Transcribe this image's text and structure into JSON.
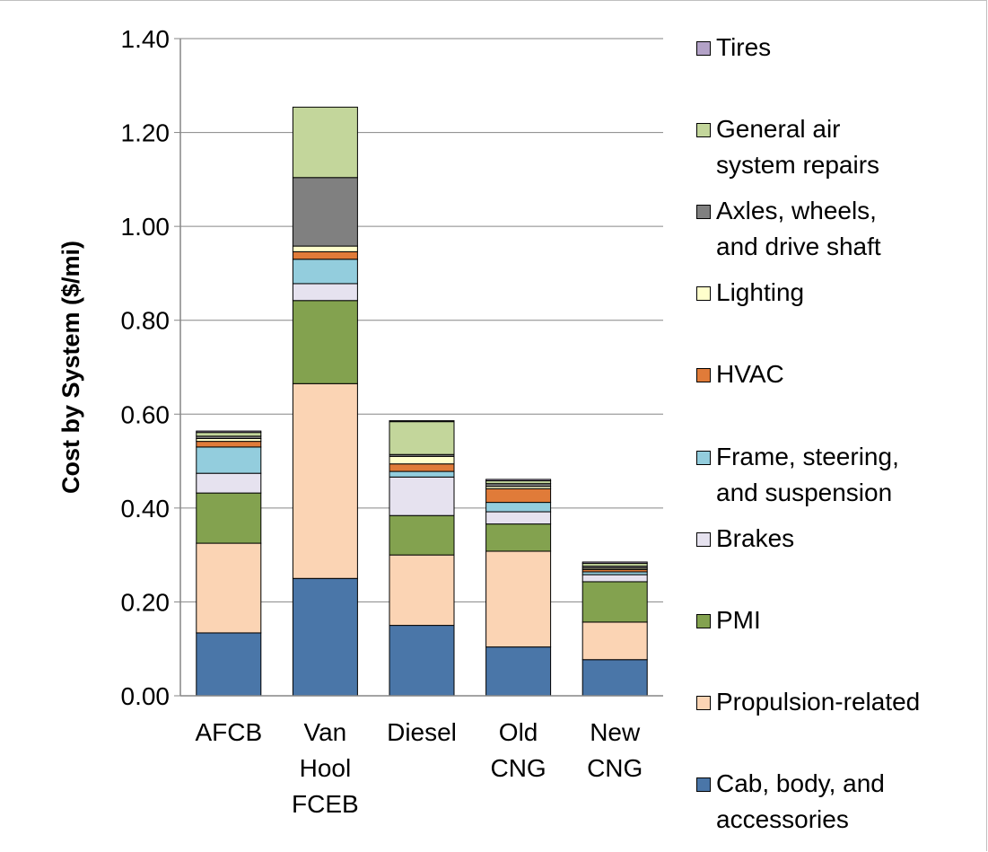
{
  "chart_data": {
    "type": "bar",
    "stacked": true,
    "y_label": "Cost by System ($/mi)",
    "categories": [
      "AFCB",
      "Van Hool FCEB",
      "Diesel",
      "Old CNG",
      "New CNG"
    ],
    "series": [
      {
        "name": "Cab, body, and accessories",
        "color": "#4a76a8",
        "values": [
          0.134,
          0.25,
          0.15,
          0.104,
          0.077
        ]
      },
      {
        "name": "Propulsion-related",
        "color": "#fbd4b4",
        "values": [
          0.191,
          0.415,
          0.15,
          0.204,
          0.08
        ]
      },
      {
        "name": "PMI",
        "color": "#83a24f",
        "values": [
          0.107,
          0.177,
          0.084,
          0.058,
          0.086
        ]
      },
      {
        "name": "Brakes",
        "color": "#e6e2ef",
        "values": [
          0.042,
          0.036,
          0.082,
          0.026,
          0.015
        ]
      },
      {
        "name": "Frame, steering, and suspension",
        "color": "#93cddd",
        "values": [
          0.056,
          0.052,
          0.012,
          0.02,
          0.006
        ]
      },
      {
        "name": "HVAC",
        "color": "#e07b39",
        "values": [
          0.012,
          0.016,
          0.016,
          0.029,
          0.005
        ]
      },
      {
        "name": "Lighting",
        "color": "#ffffcc",
        "values": [
          0.006,
          0.012,
          0.016,
          0.005,
          0.003
        ]
      },
      {
        "name": "Axles, wheels, and drive shaft",
        "color": "#808080",
        "values": [
          0.005,
          0.146,
          0.004,
          0.006,
          0.004
        ]
      },
      {
        "name": "General air system repairs",
        "color": "#c3d69b",
        "values": [
          0.008,
          0.15,
          0.07,
          0.006,
          0.006
        ]
      },
      {
        "name": "Tires",
        "color": "#b3a2c7",
        "values": [
          0.003,
          0,
          0.002,
          0.003,
          0.003
        ]
      }
    ],
    "ylim": [
      0,
      1.4
    ],
    "yticks": [
      {
        "value": 0,
        "label": "0.00"
      },
      {
        "value": 0.2,
        "label": "0.20"
      },
      {
        "value": 0.4,
        "label": "0.40"
      },
      {
        "value": 0.6,
        "label": "0.60"
      },
      {
        "value": 0.8,
        "label": "0.80"
      },
      {
        "value": 1,
        "label": "1.00"
      },
      {
        "value": 1.2,
        "label": "1.20"
      },
      {
        "value": 1.4,
        "label": "1.40"
      }
    ],
    "grid": true,
    "legend": "right"
  }
}
